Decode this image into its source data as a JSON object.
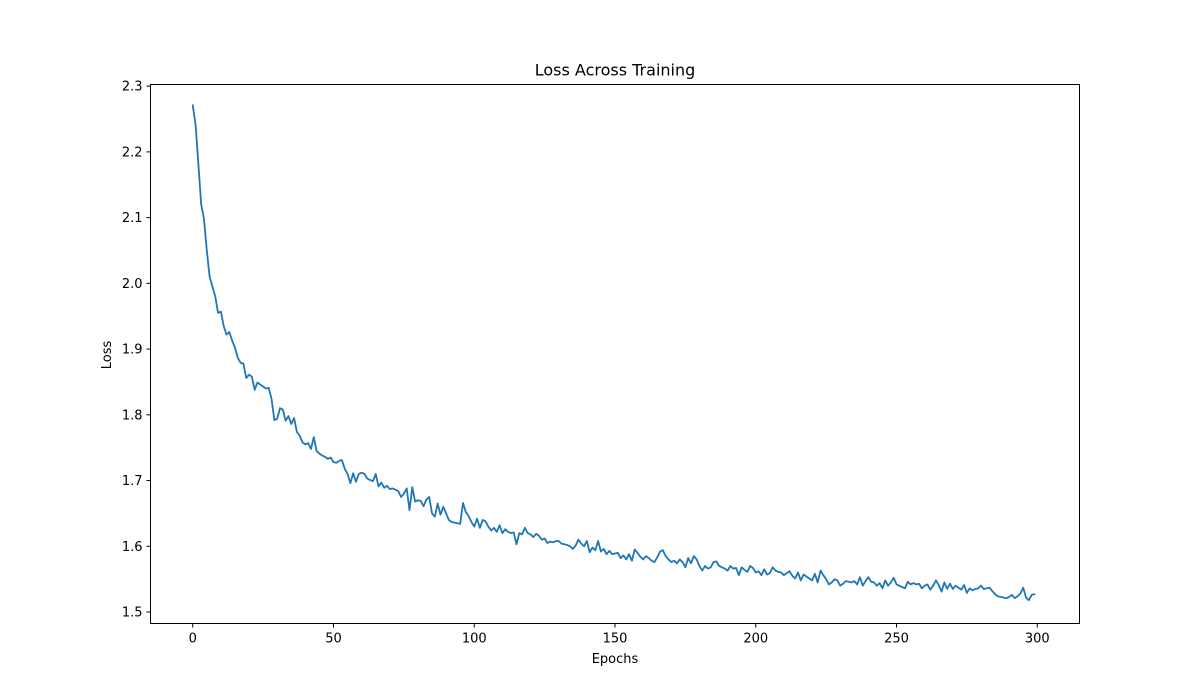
{
  "chart_data": {
    "type": "line",
    "title": "Loss Across Training",
    "xlabel": "Epochs",
    "ylabel": "Loss",
    "xlim": [
      -15,
      315
    ],
    "ylim": [
      1.4825,
      2.3025
    ],
    "xticks": [
      0,
      50,
      100,
      150,
      200,
      250,
      300
    ],
    "yticks": [
      1.5,
      1.6,
      1.7,
      1.8,
      1.9,
      2.0,
      2.1,
      2.2,
      2.3
    ],
    "xtick_labels": [
      "0",
      "50",
      "100",
      "150",
      "200",
      "250",
      "300"
    ],
    "ytick_labels": [
      "1.5",
      "1.6",
      "1.7",
      "1.8",
      "1.9",
      "2.0",
      "2.1",
      "2.2",
      "2.3"
    ],
    "grid": false,
    "legend": null,
    "series": [
      {
        "name": "loss",
        "color": "#1f77b4",
        "x_start": 0,
        "x_step": 1,
        "values": [
          2.271,
          2.242,
          2.182,
          2.12,
          2.098,
          2.05,
          2.01,
          1.995,
          1.98,
          1.955,
          1.957,
          1.935,
          1.922,
          1.926,
          1.913,
          1.902,
          1.887,
          1.879,
          1.878,
          1.856,
          1.861,
          1.858,
          1.838,
          1.849,
          1.846,
          1.843,
          1.84,
          1.841,
          1.824,
          1.792,
          1.794,
          1.81,
          1.808,
          1.791,
          1.798,
          1.786,
          1.795,
          1.774,
          1.768,
          1.758,
          1.755,
          1.757,
          1.748,
          1.766,
          1.745,
          1.741,
          1.738,
          1.736,
          1.733,
          1.735,
          1.728,
          1.727,
          1.73,
          1.731,
          1.718,
          1.71,
          1.696,
          1.711,
          1.698,
          1.71,
          1.712,
          1.71,
          1.703,
          1.701,
          1.699,
          1.71,
          1.691,
          1.697,
          1.689,
          1.692,
          1.687,
          1.688,
          1.686,
          1.684,
          1.675,
          1.68,
          1.688,
          1.655,
          1.69,
          1.668,
          1.67,
          1.669,
          1.661,
          1.671,
          1.675,
          1.65,
          1.645,
          1.665,
          1.648,
          1.66,
          1.65,
          1.64,
          1.637,
          1.636,
          1.635,
          1.634,
          1.666,
          1.652,
          1.646,
          1.637,
          1.63,
          1.642,
          1.628,
          1.64,
          1.638,
          1.63,
          1.624,
          1.628,
          1.622,
          1.632,
          1.62,
          1.626,
          1.622,
          1.62,
          1.621,
          1.603,
          1.62,
          1.618,
          1.628,
          1.62,
          1.618,
          1.614,
          1.619,
          1.616,
          1.61,
          1.612,
          1.605,
          1.607,
          1.606,
          1.608,
          1.608,
          1.604,
          1.603,
          1.602,
          1.6,
          1.596,
          1.601,
          1.61,
          1.604,
          1.6,
          1.608,
          1.591,
          1.598,
          1.594,
          1.608,
          1.592,
          1.596,
          1.588,
          1.593,
          1.588,
          1.589,
          1.59,
          1.582,
          1.586,
          1.58,
          1.588,
          1.578,
          1.595,
          1.59,
          1.584,
          1.58,
          1.585,
          1.582,
          1.578,
          1.576,
          1.583,
          1.592,
          1.594,
          1.585,
          1.58,
          1.576,
          1.578,
          1.574,
          1.58,
          1.576,
          1.568,
          1.582,
          1.574,
          1.585,
          1.58,
          1.57,
          1.563,
          1.57,
          1.566,
          1.568,
          1.576,
          1.577,
          1.57,
          1.568,
          1.566,
          1.563,
          1.57,
          1.566,
          1.567,
          1.556,
          1.568,
          1.564,
          1.561,
          1.57,
          1.567,
          1.56,
          1.562,
          1.556,
          1.565,
          1.557,
          1.559,
          1.568,
          1.563,
          1.561,
          1.56,
          1.556,
          1.559,
          1.562,
          1.555,
          1.551,
          1.56,
          1.548,
          1.557,
          1.554,
          1.551,
          1.548,
          1.558,
          1.545,
          1.563,
          1.556,
          1.55,
          1.542,
          1.545,
          1.55,
          1.548,
          1.54,
          1.543,
          1.547,
          1.546,
          1.545,
          1.547,
          1.542,
          1.553,
          1.54,
          1.547,
          1.553,
          1.546,
          1.545,
          1.54,
          1.544,
          1.536,
          1.548,
          1.54,
          1.545,
          1.552,
          1.542,
          1.54,
          1.538,
          1.536,
          1.546,
          1.542,
          1.544,
          1.542,
          1.543,
          1.536,
          1.54,
          1.542,
          1.534,
          1.54,
          1.548,
          1.541,
          1.531,
          1.545,
          1.535,
          1.543,
          1.535,
          1.54,
          1.537,
          1.534,
          1.541,
          1.529,
          1.536,
          1.533,
          1.535,
          1.536,
          1.54,
          1.535,
          1.536,
          1.537,
          1.532,
          1.527,
          1.524,
          1.523,
          1.522,
          1.521,
          1.523,
          1.526,
          1.521,
          1.524,
          1.528,
          1.537,
          1.522,
          1.518,
          1.526,
          1.527
        ]
      }
    ]
  }
}
